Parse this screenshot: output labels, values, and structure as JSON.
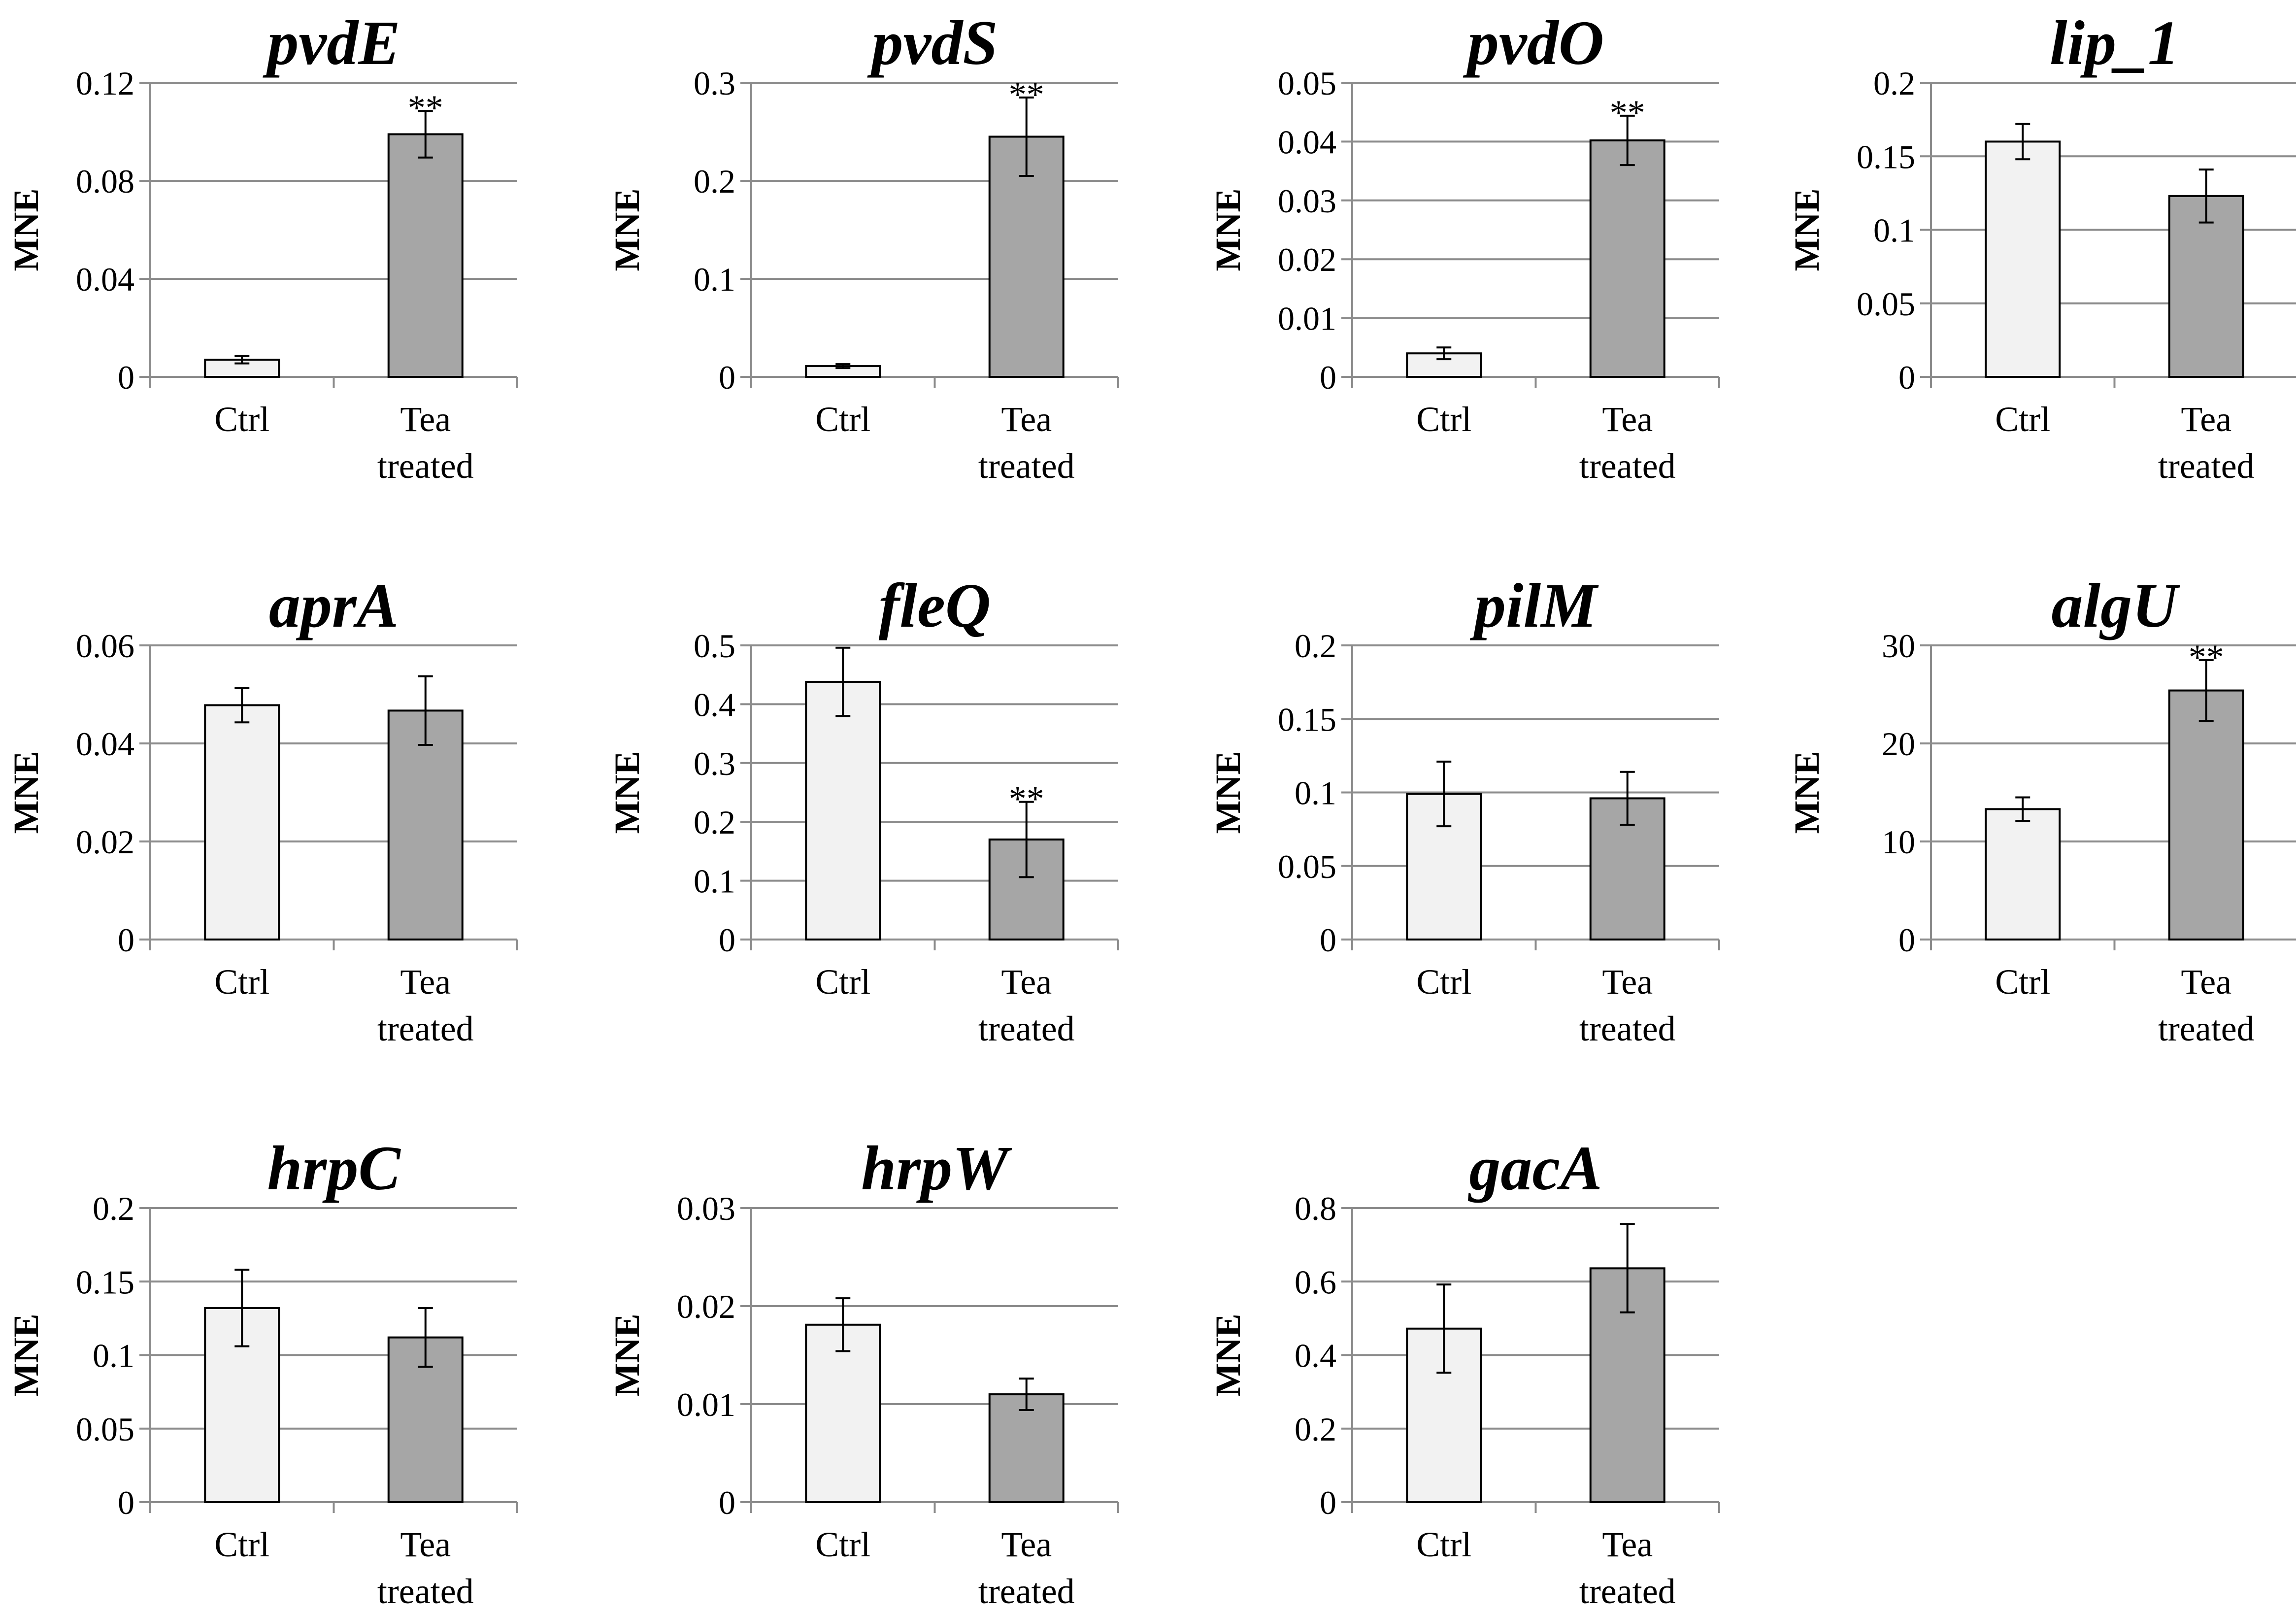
{
  "figure": {
    "bar_colors": {
      "Ctrl": "#f2f2f2",
      "Tea treated": "#a6a6a6"
    },
    "grid_color": "#8c8c8c",
    "axis_color": "#8c8c8c"
  },
  "chart_data": [
    {
      "type": "bar",
      "title": "pvdE",
      "ylabel": "MNE",
      "categories": [
        "Ctrl",
        "Tea treated"
      ],
      "yticks": [
        "0",
        "0.04",
        "0.08",
        "0.12"
      ],
      "ylim": [
        0,
        0.12
      ],
      "values": [
        0.007,
        0.099
      ],
      "errors": [
        0.0015,
        0.0095
      ],
      "annotations": [
        "",
        "**"
      ],
      "grid": true
    },
    {
      "type": "bar",
      "title": "pvdS",
      "ylabel": "MNE",
      "categories": [
        "Ctrl",
        "Tea treated"
      ],
      "yticks": [
        "0",
        "0.1",
        "0.2",
        "0.3"
      ],
      "ylim": [
        0,
        0.3
      ],
      "values": [
        0.011,
        0.245
      ],
      "errors": [
        0.002,
        0.04
      ],
      "annotations": [
        "",
        "**"
      ],
      "grid": true
    },
    {
      "type": "bar",
      "title": "pvdO",
      "ylabel": "MNE",
      "categories": [
        "Ctrl",
        "Tea treated"
      ],
      "yticks": [
        "0",
        "0.01",
        "0.02",
        "0.03",
        "0.04",
        "0.05"
      ],
      "ylim": [
        0,
        0.05
      ],
      "values": [
        0.004,
        0.0402
      ],
      "errors": [
        0.001,
        0.0042
      ],
      "annotations": [
        "",
        "**"
      ],
      "grid": true
    },
    {
      "type": "bar",
      "title": "lip_1",
      "ylabel": "MNE",
      "categories": [
        "Ctrl",
        "Tea treated"
      ],
      "yticks": [
        "0",
        "0.05",
        "0.1",
        "0.15",
        "0.2"
      ],
      "ylim": [
        0,
        0.2
      ],
      "values": [
        0.16,
        0.123
      ],
      "errors": [
        0.012,
        0.018
      ],
      "annotations": [
        "",
        ""
      ],
      "grid": true
    },
    {
      "type": "bar",
      "title": "aprA",
      "ylabel": "MNE",
      "categories": [
        "Ctrl",
        "Tea treated"
      ],
      "yticks": [
        "0",
        "0.02",
        "0.04",
        "0.06"
      ],
      "ylim": [
        0,
        0.06
      ],
      "values": [
        0.0478,
        0.0467
      ],
      "errors": [
        0.0035,
        0.007
      ],
      "annotations": [
        "",
        ""
      ],
      "grid": true
    },
    {
      "type": "bar",
      "title": "fleQ",
      "ylabel": "MNE",
      "categories": [
        "Ctrl",
        "Tea treated"
      ],
      "yticks": [
        "0",
        "0.1",
        "0.2",
        "0.3",
        "0.4",
        "0.5"
      ],
      "ylim": [
        0,
        0.5
      ],
      "values": [
        0.438,
        0.17
      ],
      "errors": [
        0.058,
        0.064
      ],
      "annotations": [
        "",
        "**"
      ],
      "grid": true
    },
    {
      "type": "bar",
      "title": "pilM",
      "ylabel": "MNE",
      "categories": [
        "Ctrl",
        "Tea treated"
      ],
      "yticks": [
        "0",
        "0.05",
        "0.1",
        "0.15",
        "0.2"
      ],
      "ylim": [
        0,
        0.2
      ],
      "values": [
        0.099,
        0.096
      ],
      "errors": [
        0.022,
        0.018
      ],
      "annotations": [
        "",
        ""
      ],
      "grid": true
    },
    {
      "type": "bar",
      "title": "algU",
      "ylabel": "MNE",
      "categories": [
        "Ctrl",
        "Tea treated"
      ],
      "yticks": [
        "0",
        "10",
        "20",
        "30"
      ],
      "ylim": [
        0,
        30
      ],
      "values": [
        13.3,
        25.4
      ],
      "errors": [
        1.2,
        3.1
      ],
      "annotations": [
        "",
        "**"
      ],
      "grid": true
    },
    {
      "type": "bar",
      "title": "hrpC",
      "ylabel": "MNE",
      "categories": [
        "Ctrl",
        "Tea treated"
      ],
      "yticks": [
        "0",
        "0.05",
        "0.1",
        "0.15",
        "0.2"
      ],
      "ylim": [
        0,
        0.2
      ],
      "values": [
        0.132,
        0.112
      ],
      "errors": [
        0.026,
        0.02
      ],
      "annotations": [
        "",
        ""
      ],
      "grid": true
    },
    {
      "type": "bar",
      "title": "hrpW",
      "ylabel": "MNE",
      "categories": [
        "Ctrl",
        "Tea treated"
      ],
      "yticks": [
        "0",
        "0.01",
        "0.02",
        "0.03"
      ],
      "ylim": [
        0,
        0.03
      ],
      "values": [
        0.0181,
        0.011
      ],
      "errors": [
        0.0027,
        0.0016
      ],
      "annotations": [
        "",
        ""
      ],
      "grid": true
    },
    {
      "type": "bar",
      "title": "gacA",
      "ylabel": "MNE",
      "categories": [
        "Ctrl",
        "Tea treated"
      ],
      "yticks": [
        "0",
        "0.2",
        "0.4",
        "0.6",
        "0.8"
      ],
      "ylim": [
        0,
        0.8
      ],
      "values": [
        0.472,
        0.636
      ],
      "errors": [
        0.12,
        0.12
      ],
      "annotations": [
        "",
        ""
      ],
      "grid": true
    }
  ]
}
